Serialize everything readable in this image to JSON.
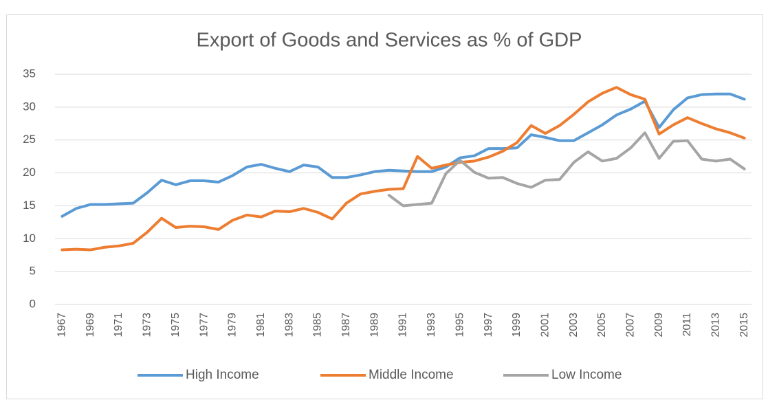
{
  "chart_data": {
    "type": "line",
    "title": "Export of Goods and Services as % of GDP",
    "categories": [
      "1967",
      null,
      "1969",
      null,
      "1971",
      null,
      "1973",
      null,
      "1975",
      null,
      "1977",
      null,
      "1979",
      null,
      "1981",
      null,
      "1983",
      null,
      "1985",
      null,
      "1987",
      null,
      "1989",
      null,
      "1991",
      null,
      "1993",
      null,
      "1995",
      null,
      "1997",
      null,
      "1999",
      null,
      "2001",
      null,
      "2003",
      null,
      "2005",
      null,
      "2007",
      null,
      "2009",
      null,
      "2011",
      null,
      "2013",
      null,
      "2015"
    ],
    "series": [
      {
        "name": "High Income",
        "color": "#5b9bd5",
        "values": [
          13.4,
          14.6,
          15.2,
          15.2,
          15.3,
          15.4,
          17.0,
          18.9,
          18.2,
          18.8,
          18.8,
          18.6,
          19.6,
          20.9,
          21.3,
          20.7,
          20.2,
          21.2,
          20.9,
          19.3,
          19.3,
          19.7,
          20.2,
          20.4,
          20.3,
          20.2,
          20.2,
          20.9,
          22.3,
          22.6,
          23.7,
          23.7,
          23.8,
          25.8,
          25.4,
          24.9,
          24.9,
          26.1,
          27.3,
          28.8,
          29.7,
          30.9,
          26.9,
          29.6,
          31.4,
          31.9,
          32.0,
          32.0,
          31.2
        ]
      },
      {
        "name": "Middle Income",
        "color": "#ed7d31",
        "values": [
          8.3,
          8.4,
          8.3,
          8.7,
          8.9,
          9.3,
          11.0,
          13.1,
          11.7,
          11.9,
          11.8,
          11.4,
          12.8,
          13.6,
          13.3,
          14.2,
          14.1,
          14.6,
          14.0,
          13.0,
          15.4,
          16.8,
          17.2,
          17.5,
          17.6,
          22.5,
          20.7,
          21.2,
          21.6,
          21.8,
          22.4,
          23.3,
          24.6,
          27.2,
          26.0,
          27.2,
          28.9,
          30.8,
          32.1,
          33.0,
          31.9,
          31.2,
          25.9,
          27.3,
          28.4,
          27.5,
          26.7,
          26.1,
          25.3
        ]
      },
      {
        "name": "Low Income",
        "color": "#a5a5a5",
        "values": [
          null,
          null,
          null,
          null,
          null,
          null,
          null,
          null,
          null,
          null,
          null,
          null,
          null,
          null,
          null,
          null,
          null,
          null,
          null,
          null,
          null,
          null,
          null,
          16.6,
          15.0,
          15.2,
          15.4,
          19.9,
          21.9,
          20.1,
          19.2,
          19.3,
          18.4,
          17.8,
          18.9,
          19.0,
          21.6,
          23.2,
          21.8,
          22.2,
          23.8,
          26.1,
          22.2,
          24.8,
          24.9,
          22.1,
          21.8,
          22.1,
          20.6
        ]
      }
    ],
    "ylim": [
      0,
      35
    ],
    "yticks": [
      0,
      5,
      10,
      15,
      20,
      25,
      30,
      35
    ],
    "grid": true,
    "legend": "bottom"
  }
}
